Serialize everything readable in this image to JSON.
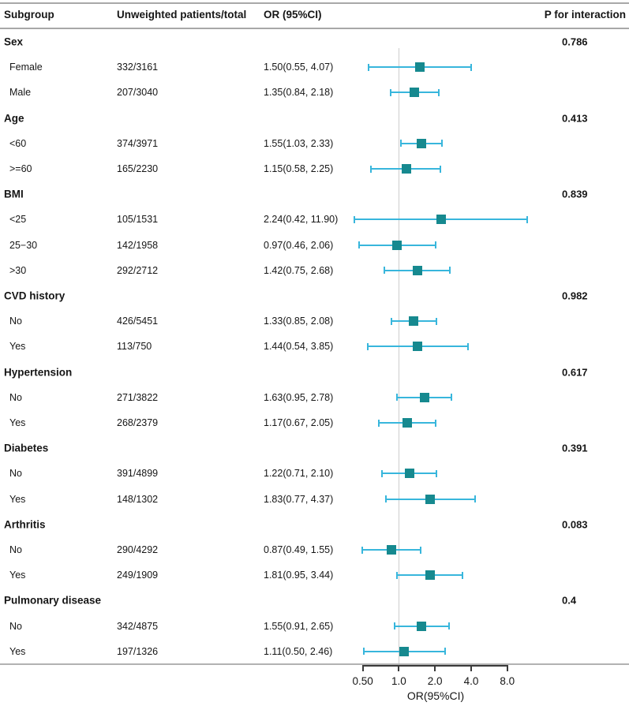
{
  "chart_data": {
    "type": "forest",
    "columns": [
      "Subgroup",
      "Unweighted patients/total",
      "OR (95%CI)",
      "P for interaction"
    ],
    "xlabel": "OR(95%CI)",
    "x_scale": "log2",
    "x_ticks": [
      0.5,
      1.0,
      2.0,
      4.0,
      8.0
    ],
    "x_tick_labels": [
      "0.50",
      "1.0",
      "2.0",
      "4.0",
      "8.0"
    ],
    "axis_range": [
      0.5,
      8.0
    ],
    "ref_line": 1.0,
    "legend": null,
    "grid": false,
    "colors": {
      "whisker": "#38B6DC",
      "marker": "#16898F",
      "ref_line": "#CDCDCD",
      "rule": "#A8A8A8",
      "axis": "#3A3A3A"
    },
    "groups": [
      {
        "name": "Sex",
        "p_interaction": "0.786",
        "rows": [
          {
            "label": "Female",
            "patients": "332/3161",
            "or_text": "1.50(0.55, 4.07)",
            "or": 1.5,
            "lo": 0.55,
            "hi": 4.07
          },
          {
            "label": "Male",
            "patients": "207/3040",
            "or_text": "1.35(0.84, 2.18)",
            "or": 1.35,
            "lo": 0.84,
            "hi": 2.18
          }
        ]
      },
      {
        "name": "Age",
        "p_interaction": "0.413",
        "rows": [
          {
            "label": "<60",
            "patients": "374/3971",
            "or_text": "1.55(1.03, 2.33)",
            "or": 1.55,
            "lo": 1.03,
            "hi": 2.33
          },
          {
            "label": ">=60",
            "patients": "165/2230",
            "or_text": "1.15(0.58, 2.25)",
            "or": 1.15,
            "lo": 0.58,
            "hi": 2.25
          }
        ]
      },
      {
        "name": "BMI",
        "p_interaction": "0.839",
        "rows": [
          {
            "label": "<25",
            "patients": "105/1531",
            "or_text": "2.24(0.42, 11.90)",
            "or": 2.24,
            "lo": 0.42,
            "hi": 11.9
          },
          {
            "label": "25−30",
            "patients": "142/1958",
            "or_text": "0.97(0.46, 2.06)",
            "or": 0.97,
            "lo": 0.46,
            "hi": 2.06
          },
          {
            "label": ">30",
            "patients": "292/2712",
            "or_text": "1.42(0.75, 2.68)",
            "or": 1.42,
            "lo": 0.75,
            "hi": 2.68
          }
        ]
      },
      {
        "name": "CVD history",
        "p_interaction": "0.982",
        "rows": [
          {
            "label": "No",
            "patients": "426/5451",
            "or_text": "1.33(0.85, 2.08)",
            "or": 1.33,
            "lo": 0.85,
            "hi": 2.08
          },
          {
            "label": "Yes",
            "patients": "113/750",
            "or_text": "1.44(0.54, 3.85)",
            "or": 1.44,
            "lo": 0.54,
            "hi": 3.85
          }
        ]
      },
      {
        "name": "Hypertension",
        "p_interaction": "0.617",
        "rows": [
          {
            "label": "No",
            "patients": "271/3822",
            "or_text": "1.63(0.95, 2.78)",
            "or": 1.63,
            "lo": 0.95,
            "hi": 2.78
          },
          {
            "label": "Yes",
            "patients": "268/2379",
            "or_text": "1.17(0.67, 2.05)",
            "or": 1.17,
            "lo": 0.67,
            "hi": 2.05
          }
        ]
      },
      {
        "name": "Diabetes",
        "p_interaction": "0.391",
        "rows": [
          {
            "label": "No",
            "patients": "391/4899",
            "or_text": "1.22(0.71, 2.10)",
            "or": 1.22,
            "lo": 0.71,
            "hi": 2.1
          },
          {
            "label": "Yes",
            "patients": "148/1302",
            "or_text": "1.83(0.77, 4.37)",
            "or": 1.83,
            "lo": 0.77,
            "hi": 4.37
          }
        ]
      },
      {
        "name": "Arthritis",
        "p_interaction": "0.083",
        "rows": [
          {
            "label": "No",
            "patients": "290/4292",
            "or_text": "0.87(0.49, 1.55)",
            "or": 0.87,
            "lo": 0.49,
            "hi": 1.55
          },
          {
            "label": "Yes",
            "patients": "249/1909",
            "or_text": "1.81(0.95, 3.44)",
            "or": 1.81,
            "lo": 0.95,
            "hi": 3.44
          }
        ]
      },
      {
        "name": "Pulmonary disease",
        "p_interaction": "0.4",
        "rows": [
          {
            "label": "No",
            "patients": "342/4875",
            "or_text": "1.55(0.91, 2.65)",
            "or": 1.55,
            "lo": 0.91,
            "hi": 2.65
          },
          {
            "label": "Yes",
            "patients": "197/1326",
            "or_text": "1.11(0.50, 2.46)",
            "or": 1.11,
            "lo": 0.5,
            "hi": 2.46
          }
        ]
      }
    ]
  }
}
